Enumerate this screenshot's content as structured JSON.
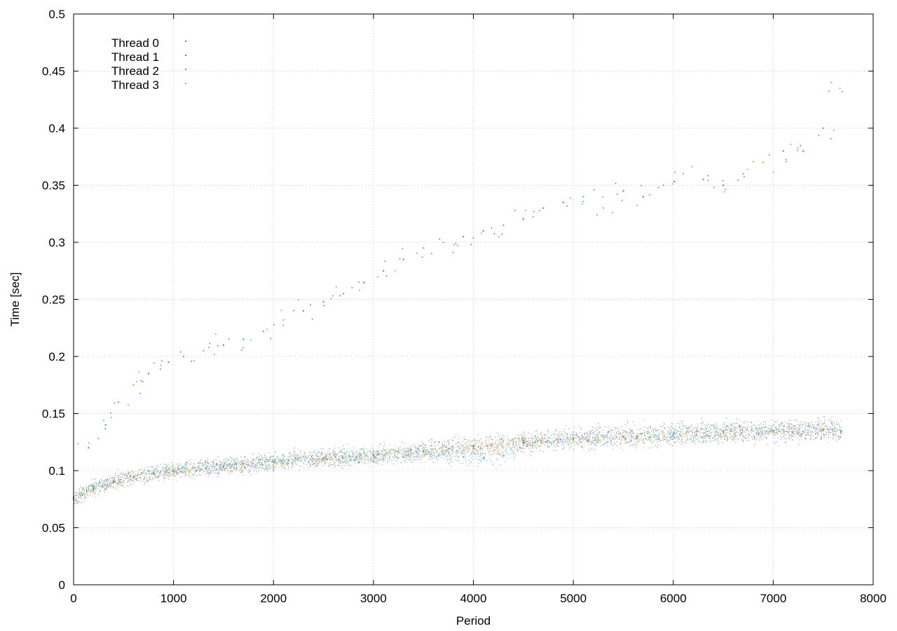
{
  "chart_data": {
    "type": "scatter",
    "title": "",
    "xlabel": "Period",
    "ylabel": "Time [sec]",
    "xlim": [
      0,
      8000
    ],
    "ylim": [
      0,
      0.5
    ],
    "xticks": [
      0,
      1000,
      2000,
      3000,
      4000,
      5000,
      6000,
      7000,
      8000
    ],
    "yticks": [
      0,
      0.05,
      0.1,
      0.15,
      0.2,
      0.25,
      0.3,
      0.35,
      0.4,
      0.45,
      0.5
    ],
    "xtick_labels": [
      "0",
      "1000",
      "2000",
      "3000",
      "4000",
      "5000",
      "6000",
      "7000",
      "8000"
    ],
    "ytick_labels": [
      "0",
      "0.05",
      "0.1",
      "0.15",
      "0.2",
      "0.25",
      "0.3",
      "0.35",
      "0.4",
      "0.45",
      "0.5"
    ],
    "grid": true,
    "legend_position": "top-left",
    "series": [
      {
        "name": "Thread 0",
        "color": "#9a5fb4",
        "x": [
          0,
          200,
          400,
          600,
          800,
          1000,
          1500,
          2000,
          2500,
          3000,
          3500,
          4000,
          4500,
          5000,
          5500,
          6000,
          6500,
          7000,
          7500,
          7680
        ],
        "values": [
          0.076,
          0.084,
          0.09,
          0.094,
          0.097,
          0.099,
          0.103,
          0.108,
          0.111,
          0.113,
          0.117,
          0.121,
          0.125,
          0.128,
          0.13,
          0.132,
          0.134,
          0.135,
          0.136,
          0.134
        ]
      },
      {
        "name": "Thread 1",
        "color": "#2f9e74",
        "x": [
          0,
          200,
          400,
          600,
          800,
          1000,
          1500,
          2000,
          2500,
          3000,
          3500,
          4000,
          4500,
          5000,
          5500,
          6000,
          6500,
          7000,
          7500,
          7680
        ],
        "values": [
          0.077,
          0.085,
          0.091,
          0.095,
          0.098,
          0.1,
          0.104,
          0.108,
          0.111,
          0.114,
          0.117,
          0.122,
          0.126,
          0.128,
          0.13,
          0.132,
          0.134,
          0.135,
          0.136,
          0.135
        ]
      },
      {
        "name": "Thread 2",
        "color": "#4aaad6",
        "x": [
          0,
          200,
          400,
          600,
          800,
          1000,
          1500,
          2000,
          2500,
          3000,
          3500,
          3900,
          4100,
          4300,
          4500,
          5000,
          5500,
          6000,
          6500,
          7000,
          7500,
          7680
        ],
        "values": [
          0.077,
          0.086,
          0.091,
          0.095,
          0.098,
          0.1,
          0.104,
          0.108,
          0.111,
          0.113,
          0.116,
          0.112,
          0.111,
          0.113,
          0.124,
          0.128,
          0.13,
          0.132,
          0.134,
          0.135,
          0.136,
          0.135
        ]
      },
      {
        "name": "Thread 3",
        "color": "#e0a030",
        "x": [
          0,
          200,
          400,
          600,
          800,
          1000,
          1500,
          2000,
          2500,
          3000,
          3500,
          4000,
          4500,
          5000,
          5500,
          6000,
          6500,
          7000,
          7500,
          7680
        ],
        "values": [
          0.075,
          0.083,
          0.089,
          0.094,
          0.097,
          0.099,
          0.103,
          0.107,
          0.11,
          0.113,
          0.116,
          0.12,
          0.124,
          0.127,
          0.129,
          0.131,
          0.133,
          0.134,
          0.135,
          0.133
        ]
      }
    ],
    "outliers": {
      "x": [
        150,
        320,
        450,
        600,
        750,
        950,
        1100,
        1300,
        1500,
        1700,
        1900,
        2100,
        2300,
        2500,
        2700,
        2900,
        3100,
        3300,
        3500,
        3700,
        3900,
        4100,
        4300,
        4500,
        4700,
        4900,
        5100,
        5300,
        5500,
        5700,
        5900,
        6100,
        6300,
        6500,
        6700,
        6900,
        7100,
        7300,
        7500,
        7580
      ],
      "values": [
        0.12,
        0.14,
        0.16,
        0.175,
        0.185,
        0.195,
        0.2,
        0.205,
        0.21,
        0.215,
        0.222,
        0.232,
        0.24,
        0.248,
        0.255,
        0.265,
        0.275,
        0.285,
        0.295,
        0.3,
        0.305,
        0.31,
        0.315,
        0.32,
        0.33,
        0.335,
        0.34,
        0.33,
        0.345,
        0.34,
        0.35,
        0.36,
        0.355,
        0.35,
        0.36,
        0.37,
        0.38,
        0.38,
        0.4,
        0.44
      ]
    }
  }
}
